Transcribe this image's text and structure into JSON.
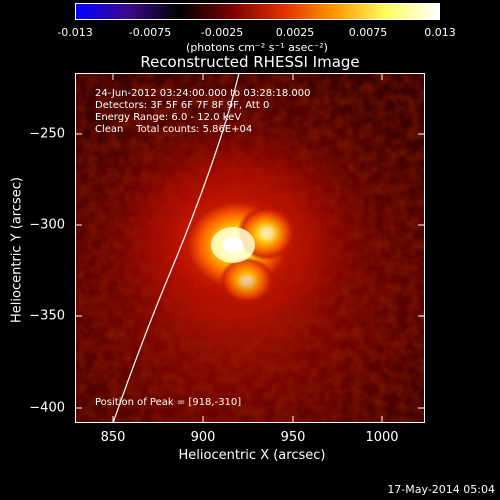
{
  "colorbar": {
    "ticks": [
      "-0.013",
      "-0.0075",
      "-0.0025",
      "0.0025",
      "0.0075",
      "0.013"
    ],
    "units": "(photons cm⁻² s⁻¹ asec⁻²)",
    "colors": [
      "#0000ff",
      "#3a0a8a",
      "#000000",
      "#7a0000",
      "#e03000",
      "#ff9a00",
      "#ffff60",
      "#ffffff"
    ]
  },
  "title": "Reconstructed RHESSI Image",
  "annotations": {
    "time_range": "24-Jun-2012 03:24:00.000 to 03:28:18.000",
    "detectors": "Detectors: 3F 5F 6F 7F 8F 9F, Att 0",
    "energy": "Energy Range: 6.0 - 12.0 keV",
    "clean": "Clean    Total counts: 5.86E+04",
    "peak": "Position of Peak = [918,-310]"
  },
  "axes": {
    "xlabel": "Heliocentric X (arcsec)",
    "ylabel": "Heliocentric Y (arcsec)",
    "xticks": [
      "850",
      "900",
      "950",
      "1000"
    ],
    "yticks": [
      "−250",
      "−300",
      "−350",
      "−400"
    ]
  },
  "image": {
    "peak_x": 918,
    "peak_y": -310
  },
  "footer": {
    "date": "17-May-2014 05:04"
  }
}
